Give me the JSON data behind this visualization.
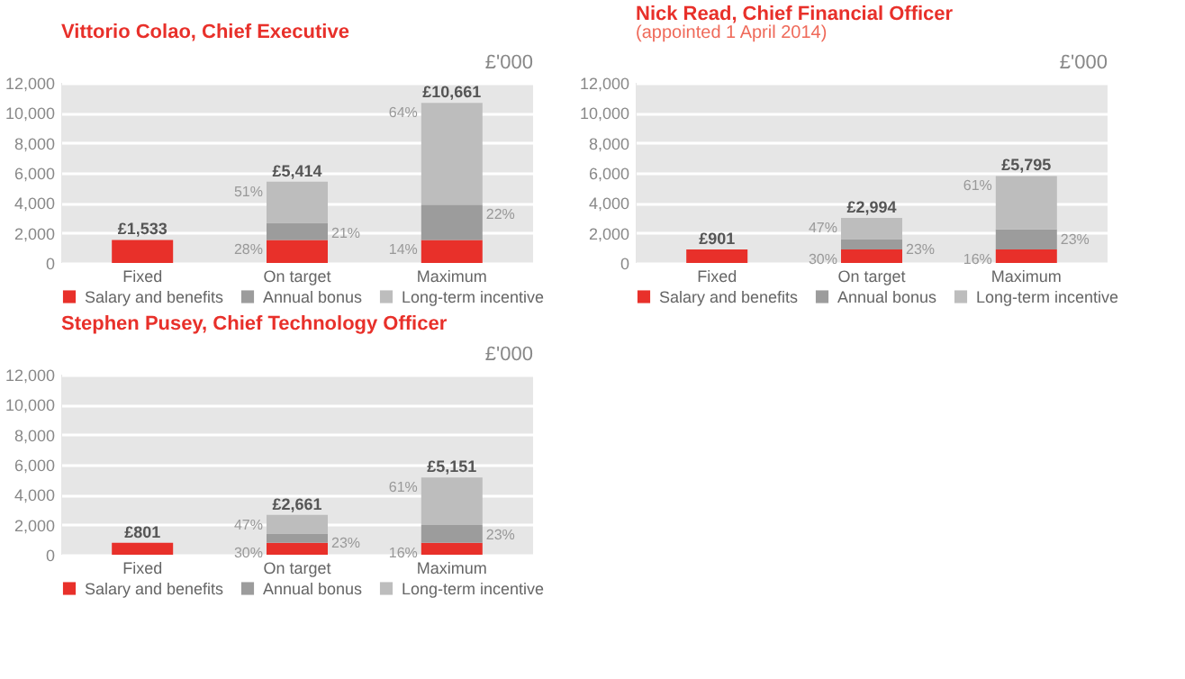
{
  "chart_data": [
    {
      "type": "bar",
      "stacked": true,
      "title": "Vittorio Colao, Chief Executive",
      "ylabel": "£'000",
      "categories": [
        "Fixed",
        "On target",
        "Maximum"
      ],
      "ylim": [
        0,
        12000
      ],
      "yticks": [
        0,
        {
          "value": 2000,
          "label": "2,000"
        },
        {
          "value": 4000,
          "label": "4,000"
        },
        {
          "value": 6000,
          "label": "6,000"
        },
        {
          "value": 8000,
          "label": "8,000"
        },
        {
          "value": 10000,
          "label": "10,000"
        },
        {
          "value": 12000,
          "label": "12,000"
        }
      ],
      "grid": "y",
      "legend": "bottom",
      "series": [
        {
          "name": "Salary and benefits",
          "color": "#e8302a",
          "values": [
            1533,
            1533,
            1533
          ]
        },
        {
          "name": "Annual bonus",
          "color": "#9c9c9c",
          "values": [
            0,
            1137,
            2345
          ]
        },
        {
          "name": "Long-term incentive",
          "color": "#bdbdbd",
          "values": [
            0,
            2744,
            6783
          ]
        }
      ],
      "totals": [
        "£1,533",
        "£5,414",
        "£10,661"
      ],
      "annotations": [
        {
          "text": "28%",
          "x": "On target",
          "y": 1533
        },
        {
          "text": "14%",
          "x": "Maximum",
          "y": 1533
        },
        {
          "text": "21%",
          "x": "On target",
          "y": 2670
        },
        {
          "text": "22%",
          "x": "Maximum",
          "y": 3878
        },
        {
          "text": "51%",
          "x": "On target",
          "y": 5414
        },
        {
          "text": "64%",
          "x": "Maximum",
          "y": 10661
        }
      ]
    },
    {
      "type": "bar",
      "stacked": true,
      "title": "Nick Read, Chief Financial Officer",
      "subtitle": "(appointed 1 April 2014)",
      "ylabel": "£'000",
      "categories": [
        "Fixed",
        "On target",
        "Maximum"
      ],
      "ylim": [
        0,
        12000
      ],
      "yticks": [
        0,
        {
          "value": 2000,
          "label": "2,000"
        },
        {
          "value": 4000,
          "label": "4,000"
        },
        {
          "value": 6000,
          "label": "6,000"
        },
        {
          "value": 8000,
          "label": "8,000"
        },
        {
          "value": 10000,
          "label": "10,000"
        },
        {
          "value": 12000,
          "label": "12,000"
        }
      ],
      "grid": "y",
      "legend": "bottom",
      "series": [
        {
          "name": "Salary and benefits",
          "color": "#e8302a",
          "values": [
            901,
            901,
            901
          ]
        },
        {
          "name": "Annual bonus",
          "color": "#9c9c9c",
          "values": [
            0,
            689,
            1333
          ]
        },
        {
          "name": "Long-term incentive",
          "color": "#bdbdbd",
          "values": [
            0,
            1404,
            3561
          ]
        }
      ],
      "totals": [
        "£901",
        "£2,994",
        "£5,795"
      ],
      "annotations": [
        {
          "text": "30%",
          "x": "On target",
          "y": 901
        },
        {
          "text": "16%",
          "x": "Maximum",
          "y": 901
        },
        {
          "text": "23%",
          "x": "On target",
          "y": 1590
        },
        {
          "text": "23%",
          "x": "Maximum",
          "y": 2234
        },
        {
          "text": "47%",
          "x": "On target",
          "y": 2994
        },
        {
          "text": "61%",
          "x": "Maximum",
          "y": 5795
        }
      ]
    },
    {
      "type": "bar",
      "stacked": true,
      "title": "Stephen Pusey, Chief Technology Officer",
      "ylabel": "£'000",
      "categories": [
        "Fixed",
        "On target",
        "Maximum"
      ],
      "ylim": [
        0,
        12000
      ],
      "yticks": [
        0,
        {
          "value": 2000,
          "label": "2,000"
        },
        {
          "value": 4000,
          "label": "4,000"
        },
        {
          "value": 6000,
          "label": "6,000"
        },
        {
          "value": 8000,
          "label": "8,000"
        },
        {
          "value": 10000,
          "label": "10,000"
        },
        {
          "value": 12000,
          "label": "12,000"
        }
      ],
      "grid": "y",
      "legend": "bottom",
      "series": [
        {
          "name": "Salary and benefits",
          "color": "#e8302a",
          "values": [
            801,
            801,
            801
          ]
        },
        {
          "name": "Annual bonus",
          "color": "#9c9c9c",
          "values": [
            0,
            612,
            1185
          ]
        },
        {
          "name": "Long-term incentive",
          "color": "#bdbdbd",
          "values": [
            0,
            1248,
            3165
          ]
        }
      ],
      "totals": [
        "£801",
        "£2,661",
        "£5,151"
      ],
      "annotations": [
        {
          "text": "30%",
          "x": "On target",
          "y": 801
        },
        {
          "text": "16%",
          "x": "Maximum",
          "y": 801
        },
        {
          "text": "23%",
          "x": "On target",
          "y": 1413
        },
        {
          "text": "23%",
          "x": "Maximum",
          "y": 1986
        },
        {
          "text": "47%",
          "x": "On target",
          "y": 2661
        },
        {
          "text": "61%",
          "x": "Maximum",
          "y": 5151
        }
      ]
    }
  ]
}
